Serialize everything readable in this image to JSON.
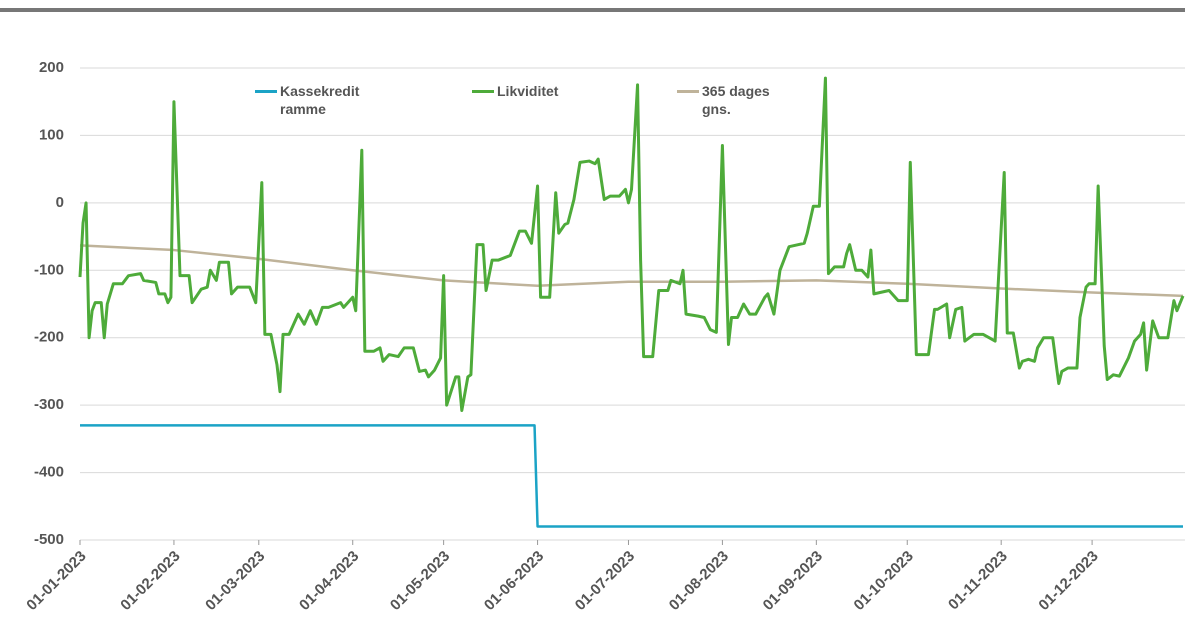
{
  "chart_data": {
    "type": "line",
    "xlim": [
      "01-01-2023",
      "31-12-2023"
    ],
    "xticks": [
      "01-01-2023",
      "01-02-2023",
      "01-03-2023",
      "01-04-2023",
      "01-05-2023",
      "01-06-2023",
      "01-07-2023",
      "01-08-2023",
      "01-09-2023",
      "01-10-2023",
      "01-11-2023",
      "01-12-2023"
    ],
    "ylim": [
      -500,
      200
    ],
    "yticks": [
      -500,
      -400,
      -300,
      -200,
      -100,
      0,
      100,
      200
    ],
    "grid": true,
    "series": [
      {
        "name": "Kassekredit ramme",
        "color": "#1ba3c6",
        "x": [
          "01-01-2023",
          "31-05-2023",
          "01-06-2023",
          "31-12-2023"
        ],
        "values": [
          -330,
          -330,
          -480,
          -480
        ]
      },
      {
        "name": "Likviditet",
        "color": "#4eab3a",
        "x": [
          "01-01-2023",
          "02-01-2023",
          "03-01-2023",
          "04-01-2023",
          "05-01-2023",
          "06-01-2023",
          "08-01-2023",
          "09-01-2023",
          "10-01-2023",
          "12-01-2023",
          "15-01-2023",
          "17-01-2023",
          "21-01-2023",
          "22-01-2023",
          "26-01-2023",
          "27-01-2023",
          "29-01-2023",
          "30-01-2023",
          "31-01-2023",
          "01-02-2023",
          "03-02-2023",
          "06-02-2023",
          "07-02-2023",
          "10-02-2023",
          "12-02-2023",
          "13-02-2023",
          "15-02-2023",
          "16-02-2023",
          "19-02-2023",
          "20-02-2023",
          "22-02-2023",
          "26-02-2023",
          "28-02-2023",
          "02-03-2023",
          "03-03-2023",
          "05-03-2023",
          "07-03-2023",
          "08-03-2023",
          "09-03-2023",
          "11-03-2023",
          "14-03-2023",
          "16-03-2023",
          "18-03-2023",
          "20-03-2023",
          "22-03-2023",
          "24-03-2023",
          "28-03-2023",
          "29-03-2023",
          "01-04-2023",
          "02-04-2023",
          "04-04-2023",
          "05-04-2023",
          "08-04-2023",
          "10-04-2023",
          "11-04-2023",
          "13-04-2023",
          "16-04-2023",
          "18-04-2023",
          "21-04-2023",
          "23-04-2023",
          "25-04-2023",
          "26-04-2023",
          "28-04-2023",
          "30-04-2023",
          "01-05-2023",
          "02-05-2023",
          "05-05-2023",
          "06-05-2023",
          "07-05-2023",
          "09-05-2023",
          "10-05-2023",
          "12-05-2023",
          "14-05-2023",
          "15-05-2023",
          "17-05-2023",
          "19-05-2023",
          "23-05-2023",
          "26-05-2023",
          "28-05-2023",
          "30-05-2023",
          "01-06-2023",
          "02-06-2023",
          "05-06-2023",
          "07-06-2023",
          "08-06-2023",
          "10-06-2023",
          "11-06-2023",
          "13-06-2023",
          "15-06-2023",
          "18-06-2023",
          "20-06-2023",
          "21-06-2023",
          "23-06-2023",
          "25-06-2023",
          "28-06-2023",
          "30-06-2023",
          "01-07-2023",
          "02-07-2023",
          "04-07-2023",
          "05-07-2023",
          "06-07-2023",
          "09-07-2023",
          "11-07-2023",
          "14-07-2023",
          "15-07-2023",
          "18-07-2023",
          "19-07-2023",
          "20-07-2023",
          "24-07-2023",
          "26-07-2023",
          "28-07-2023",
          "30-07-2023",
          "01-08-2023",
          "03-08-2023",
          "04-08-2023",
          "06-08-2023",
          "08-08-2023",
          "10-08-2023",
          "12-08-2023",
          "15-08-2023",
          "16-08-2023",
          "18-08-2023",
          "20-08-2023",
          "23-08-2023",
          "28-08-2023",
          "29-08-2023",
          "31-08-2023",
          "02-09-2023",
          "04-09-2023",
          "05-09-2023",
          "07-09-2023",
          "10-09-2023",
          "11-09-2023",
          "12-09-2023",
          "14-09-2023",
          "16-09-2023",
          "18-09-2023",
          "19-09-2023",
          "20-09-2023",
          "25-09-2023",
          "26-09-2023",
          "28-09-2023",
          "01-10-2023",
          "02-10-2023",
          "04-10-2023",
          "08-10-2023",
          "10-10-2023",
          "11-10-2023",
          "14-10-2023",
          "15-10-2023",
          "17-10-2023",
          "19-10-2023",
          "20-10-2023",
          "23-10-2023",
          "26-10-2023",
          "28-10-2023",
          "30-10-2023",
          "02-11-2023",
          "03-11-2023",
          "05-11-2023",
          "07-11-2023",
          "08-11-2023",
          "10-11-2023",
          "12-11-2023",
          "13-11-2023",
          "15-11-2023",
          "18-11-2023",
          "20-11-2023",
          "21-11-2023",
          "23-11-2023",
          "26-11-2023",
          "27-11-2023",
          "29-11-2023",
          "30-11-2023",
          "02-12-2023",
          "03-12-2023",
          "05-12-2023",
          "06-12-2023",
          "08-12-2023",
          "10-12-2023",
          "13-12-2023",
          "15-12-2023",
          "17-12-2023",
          "18-12-2023",
          "19-12-2023",
          "21-12-2023",
          "23-12-2023",
          "26-12-2023",
          "28-12-2023",
          "29-12-2023",
          "31-12-2023"
        ],
        "values": [
          -110,
          -30,
          0,
          -200,
          -160,
          -148,
          -148,
          -200,
          -150,
          -120,
          -120,
          -108,
          -105,
          -115,
          -118,
          -135,
          -135,
          -148,
          -140,
          150,
          -108,
          -108,
          -148,
          -128,
          -125,
          -100,
          -115,
          -88,
          -88,
          -135,
          -125,
          -125,
          -148,
          30,
          -195,
          -195,
          -240,
          -280,
          -195,
          -195,
          -165,
          -180,
          -160,
          -180,
          -155,
          -155,
          -148,
          -155,
          -140,
          -160,
          78,
          -220,
          -220,
          -215,
          -235,
          -225,
          -228,
          -215,
          -215,
          -250,
          -248,
          -258,
          -248,
          -230,
          -108,
          -300,
          -258,
          -258,
          -308,
          -258,
          -255,
          -62,
          -62,
          -130,
          -85,
          -85,
          -78,
          -42,
          -42,
          -60,
          25,
          -140,
          -140,
          15,
          -45,
          -32,
          -30,
          5,
          60,
          62,
          58,
          65,
          5,
          10,
          10,
          20,
          0,
          20,
          175,
          -85,
          -228,
          -228,
          -130,
          -130,
          -115,
          -120,
          -100,
          -165,
          -168,
          -170,
          -188,
          -192,
          85,
          -210,
          -170,
          -170,
          -150,
          -165,
          -165,
          -140,
          -135,
          -165,
          -100,
          -65,
          -60,
          -45,
          -5,
          -5,
          185,
          -105,
          -95,
          -95,
          -75,
          -62,
          -100,
          -100,
          -110,
          -70,
          -135,
          -130,
          -135,
          -145,
          -145,
          60,
          -225,
          -225,
          -158,
          -158,
          -150,
          -200,
          -158,
          -155,
          -205,
          -195,
          -195,
          -200,
          -205,
          45,
          -193,
          -193,
          -245,
          -235,
          -232,
          -235,
          -215,
          -200,
          -200,
          -268,
          -250,
          -245,
          -245,
          -170,
          -125,
          -120,
          -120,
          25,
          -212,
          -262,
          -255,
          -257,
          -230,
          -205,
          -195,
          -178,
          -248,
          -175,
          -200,
          -200,
          -145,
          -160,
          -138
        ]
      },
      {
        "name": "365 dages gns.",
        "color": "#bfb39a",
        "x": [
          "01-01-2023",
          "01-02-2023",
          "01-03-2023",
          "01-04-2023",
          "01-05-2023",
          "01-06-2023",
          "01-07-2023",
          "01-08-2023",
          "01-09-2023",
          "01-10-2023",
          "01-11-2023",
          "01-12-2023",
          "31-12-2023"
        ],
        "values": [
          -63,
          -70,
          -83,
          -100,
          -115,
          -123,
          -117,
          -117,
          -115,
          -120,
          -127,
          -133,
          -138
        ]
      }
    ]
  }
}
